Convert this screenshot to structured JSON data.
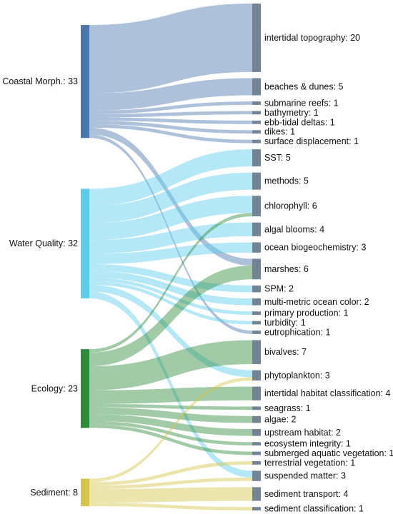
{
  "chart_data": {
    "type": "sankey",
    "sources": [
      {
        "name": "Coastal Morph.",
        "value": 33,
        "color": "#4a76ad"
      },
      {
        "name": "Water Quality",
        "value": 32,
        "color": "#5ccbec"
      },
      {
        "name": "Ecology",
        "value": 23,
        "color": "#2e8b3a"
      },
      {
        "name": "Sediment",
        "value": 8,
        "color": "#d4c44a"
      }
    ],
    "targets": [
      {
        "name": "intertidal topography",
        "value": 20
      },
      {
        "name": "beaches & dunes",
        "value": 5
      },
      {
        "name": "submarine reefs",
        "value": 1
      },
      {
        "name": "bathymetry",
        "value": 1
      },
      {
        "name": "ebb-tidal deltas",
        "value": 1
      },
      {
        "name": "dikes",
        "value": 1
      },
      {
        "name": "surface displacement",
        "value": 1
      },
      {
        "name": "SST",
        "value": 5
      },
      {
        "name": "methods",
        "value": 5
      },
      {
        "name": "chlorophyll",
        "value": 6
      },
      {
        "name": "algal blooms",
        "value": 4
      },
      {
        "name": "ocean biogeochemistry",
        "value": 3
      },
      {
        "name": "marshes",
        "value": 6
      },
      {
        "name": "SPM",
        "value": 2
      },
      {
        "name": "multi-metric ocean color",
        "value": 2
      },
      {
        "name": "primary production",
        "value": 1
      },
      {
        "name": "turbidity",
        "value": 1
      },
      {
        "name": "eutrophication",
        "value": 1
      },
      {
        "name": "bivalves",
        "value": 7
      },
      {
        "name": "phytoplankton",
        "value": 3
      },
      {
        "name": "intertidal habitat classification",
        "value": 4
      },
      {
        "name": "seagrass",
        "value": 1
      },
      {
        "name": "algae",
        "value": 2
      },
      {
        "name": "upstream habitat",
        "value": 2
      },
      {
        "name": "ecosystem integrity",
        "value": 1
      },
      {
        "name": "submerged aquatic vegetation",
        "value": 1
      },
      {
        "name": "terrestrial vegetation",
        "value": 1
      },
      {
        "name": "suspended matter",
        "value": 3
      },
      {
        "name": "sediment transport",
        "value": 4
      },
      {
        "name": "sediment classification",
        "value": 1
      }
    ],
    "links": [
      {
        "source": "Coastal Morph.",
        "target": "intertidal topography",
        "value": 20
      },
      {
        "source": "Coastal Morph.",
        "target": "beaches & dunes",
        "value": 5
      },
      {
        "source": "Coastal Morph.",
        "target": "submarine reefs",
        "value": 1
      },
      {
        "source": "Coastal Morph.",
        "target": "bathymetry",
        "value": 1
      },
      {
        "source": "Coastal Morph.",
        "target": "ebb-tidal deltas",
        "value": 1
      },
      {
        "source": "Coastal Morph.",
        "target": "dikes",
        "value": 1
      },
      {
        "source": "Coastal Morph.",
        "target": "surface displacement",
        "value": 1
      },
      {
        "source": "Coastal Morph.",
        "target": "marshes",
        "value": 2
      },
      {
        "source": "Coastal Morph.",
        "target": "eutrophication",
        "value": 1
      },
      {
        "source": "Water Quality",
        "target": "SST",
        "value": 5
      },
      {
        "source": "Water Quality",
        "target": "methods",
        "value": 5
      },
      {
        "source": "Water Quality",
        "target": "chlorophyll",
        "value": 5
      },
      {
        "source": "Water Quality",
        "target": "algal blooms",
        "value": 4
      },
      {
        "source": "Water Quality",
        "target": "ocean biogeochemistry",
        "value": 3
      },
      {
        "source": "Water Quality",
        "target": "SPM",
        "value": 2
      },
      {
        "source": "Water Quality",
        "target": "multi-metric ocean color",
        "value": 2
      },
      {
        "source": "Water Quality",
        "target": "primary production",
        "value": 1
      },
      {
        "source": "Water Quality",
        "target": "turbidity",
        "value": 1
      },
      {
        "source": "Water Quality",
        "target": "phytoplankton",
        "value": 2
      },
      {
        "source": "Water Quality",
        "target": "suspended matter",
        "value": 2
      },
      {
        "source": "Ecology",
        "target": "chlorophyll",
        "value": 1
      },
      {
        "source": "Ecology",
        "target": "marshes",
        "value": 4
      },
      {
        "source": "Ecology",
        "target": "bivalves",
        "value": 7
      },
      {
        "source": "Ecology",
        "target": "intertidal habitat classification",
        "value": 4
      },
      {
        "source": "Ecology",
        "target": "seagrass",
        "value": 1
      },
      {
        "source": "Ecology",
        "target": "algae",
        "value": 2
      },
      {
        "source": "Ecology",
        "target": "upstream habitat",
        "value": 2
      },
      {
        "source": "Ecology",
        "target": "ecosystem integrity",
        "value": 1
      },
      {
        "source": "Ecology",
        "target": "submerged aquatic vegetation",
        "value": 1
      },
      {
        "source": "Sediment",
        "target": "phytoplankton",
        "value": 1
      },
      {
        "source": "Sediment",
        "target": "suspended matter",
        "value": 1
      },
      {
        "source": "Sediment",
        "target": "sediment transport",
        "value": 4
      },
      {
        "source": "Sediment",
        "target": "terrestrial vegetation",
        "value": 1
      },
      {
        "source": "Sediment",
        "target": "sediment classification",
        "value": 1
      }
    ],
    "target_color": "#758494"
  }
}
